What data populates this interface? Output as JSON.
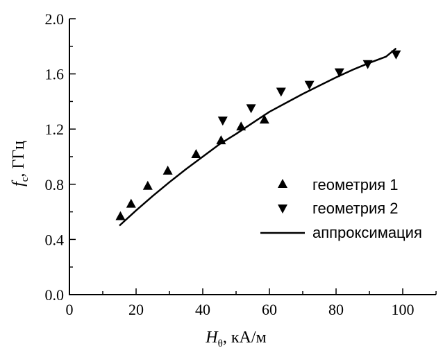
{
  "chart_data": {
    "type": "scatter",
    "title": "",
    "xlabel": {
      "symbol": "H",
      "subscript": "θ",
      "units": ", кА/м"
    },
    "ylabel": {
      "symbol": "f",
      "subscript": "c",
      "units": ", ГГц"
    },
    "xlim": [
      0,
      110
    ],
    "ylim": [
      0.0,
      2.0
    ],
    "x_ticks": [
      0,
      20,
      40,
      60,
      80,
      100
    ],
    "y_ticks": [
      0.0,
      0.4,
      0.8,
      1.2,
      1.6,
      2.0
    ],
    "x_tick_labels": [
      "0",
      "20",
      "40",
      "60",
      "80",
      "100"
    ],
    "y_tick_labels": [
      "0.0",
      "0.4",
      "0.8",
      "1.2",
      "1.6",
      "2.0"
    ],
    "grid": false,
    "legend_position": "lower-right",
    "series": [
      {
        "name": "геометрия 1",
        "marker": "triangle-up",
        "points": [
          {
            "x": 15.3,
            "y": 0.57
          },
          {
            "x": 18.5,
            "y": 0.66
          },
          {
            "x": 23.5,
            "y": 0.79
          },
          {
            "x": 29.5,
            "y": 0.9
          },
          {
            "x": 38.0,
            "y": 1.02
          },
          {
            "x": 45.5,
            "y": 1.12
          },
          {
            "x": 51.5,
            "y": 1.22
          },
          {
            "x": 58.5,
            "y": 1.27
          }
        ]
      },
      {
        "name": "геометрия 2",
        "marker": "triangle-down",
        "points": [
          {
            "x": 46.0,
            "y": 1.26
          },
          {
            "x": 54.5,
            "y": 1.35
          },
          {
            "x": 63.5,
            "y": 1.47
          },
          {
            "x": 72.0,
            "y": 1.52
          },
          {
            "x": 81.0,
            "y": 1.61
          },
          {
            "x": 89.5,
            "y": 1.67
          },
          {
            "x": 98.0,
            "y": 1.74
          }
        ]
      },
      {
        "name": "аппроксимация",
        "style": "line",
        "points": [
          {
            "x": 15.0,
            "y": 0.5
          },
          {
            "x": 20.0,
            "y": 0.61
          },
          {
            "x": 25.0,
            "y": 0.715
          },
          {
            "x": 30.0,
            "y": 0.815
          },
          {
            "x": 35.0,
            "y": 0.91
          },
          {
            "x": 40.0,
            "y": 1.0
          },
          {
            "x": 45.0,
            "y": 1.09
          },
          {
            "x": 50.0,
            "y": 1.165
          },
          {
            "x": 55.0,
            "y": 1.245
          },
          {
            "x": 60.0,
            "y": 1.325
          },
          {
            "x": 65.0,
            "y": 1.39
          },
          {
            "x": 70.0,
            "y": 1.455
          },
          {
            "x": 75.0,
            "y": 1.515
          },
          {
            "x": 80.0,
            "y": 1.575
          },
          {
            "x": 85.0,
            "y": 1.63
          },
          {
            "x": 90.0,
            "y": 1.68
          },
          {
            "x": 95.0,
            "y": 1.725
          },
          {
            "x": 98.0,
            "y": 1.785
          }
        ]
      }
    ]
  }
}
